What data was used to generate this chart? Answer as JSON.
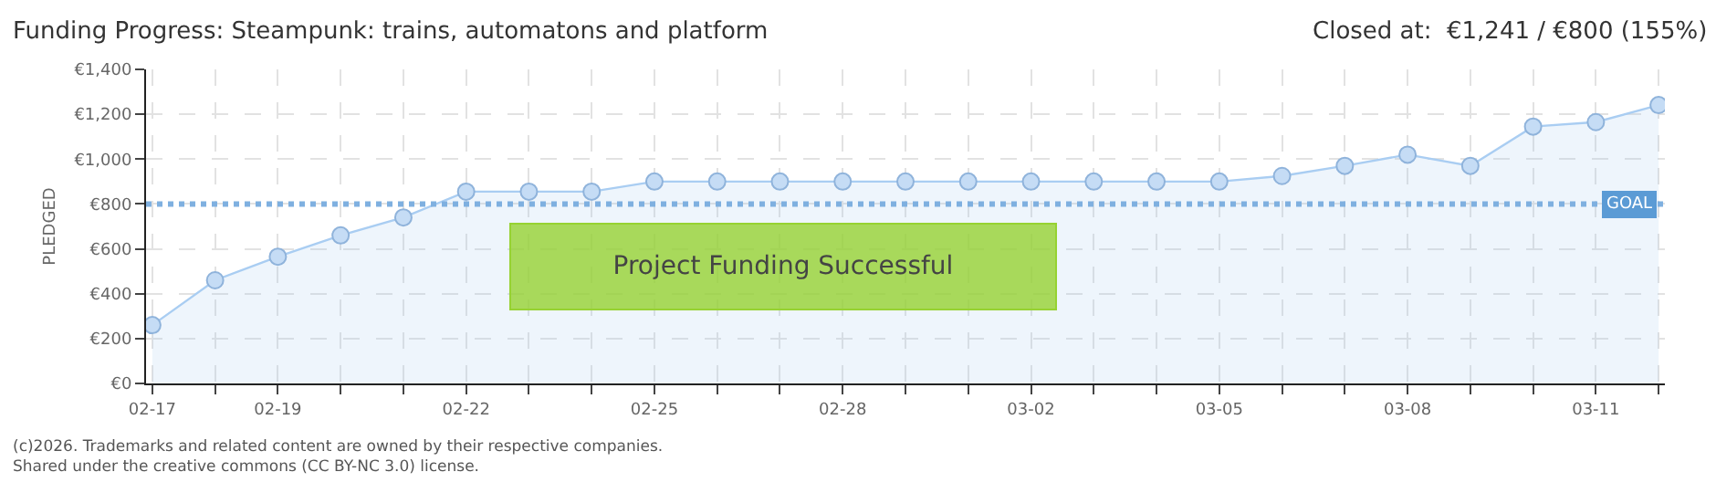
{
  "chart_data": {
    "type": "area",
    "title": "Funding Progress: Steampunk: trains, automatons and platform",
    "subtitle": "Closed at:  €1,241 / €800 (155%)",
    "ylabel": "PLEDGED",
    "categories": [
      "02-17",
      null,
      "02-19",
      null,
      null,
      "02-22",
      null,
      null,
      "02-25",
      null,
      null,
      "02-28",
      null,
      null,
      "03-02",
      null,
      null,
      "03-05",
      null,
      null,
      "03-08",
      null,
      null,
      "03-11",
      null
    ],
    "series": [
      {
        "color": "#a9cdf2",
        "values": [
          260,
          460,
          565,
          660,
          740,
          855,
          855,
          855,
          900,
          900,
          900,
          900,
          900,
          900,
          900,
          900,
          900,
          900,
          925,
          970,
          1020,
          970,
          1145,
          1165,
          1241
        ]
      }
    ],
    "ylim": [
      0,
      1400
    ],
    "yticks": [
      {
        "value": 0,
        "label": "€0"
      },
      {
        "value": 200,
        "label": "€200"
      },
      {
        "value": 400,
        "label": "€400"
      },
      {
        "value": 600,
        "label": "€600"
      },
      {
        "value": 800,
        "label": "€800"
      },
      {
        "value": 1000,
        "label": "€1,000"
      },
      {
        "value": 1200,
        "label": "€1,200"
      },
      {
        "value": 1400,
        "label": "€1,400"
      }
    ],
    "ref_lines": [
      {
        "axis": "y",
        "value": 800,
        "label": "GOAL",
        "color": "#7fb0e0",
        "line_style": "dotted"
      }
    ],
    "annotations": [
      "Project Funding Successful",
      "(c)2026. Trademarks and related content are owned by their respective companies.",
      "Shared under the creative commons (CC BY-NC 3.0) license."
    ],
    "grid": true,
    "marker": "circle"
  }
}
